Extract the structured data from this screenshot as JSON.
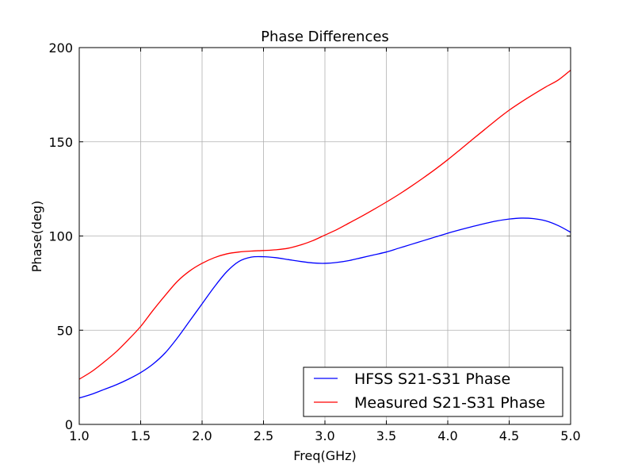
{
  "chart_data": {
    "type": "line",
    "title": "Phase Differences",
    "xlabel": "Freq(GHz)",
    "ylabel": "Phase(deg)",
    "xlim": [
      1.0,
      5.0
    ],
    "ylim": [
      0,
      200
    ],
    "x_ticks": [
      1.0,
      1.5,
      2.0,
      2.5,
      3.0,
      3.5,
      4.0,
      4.5,
      5.0
    ],
    "x_tick_labels": [
      "1.0",
      "1.5",
      "2.0",
      "2.5",
      "3.0",
      "3.5",
      "4.0",
      "4.5",
      "5.0"
    ],
    "y_ticks": [
      0,
      50,
      100,
      150,
      200
    ],
    "y_tick_labels": [
      "0",
      "50",
      "100",
      "150",
      "200"
    ],
    "grid": true,
    "legend_position": "lower-right",
    "series": [
      {
        "name": "HFSS S21-S31 Phase",
        "color": "#0000ff",
        "x": [
          1.0,
          1.1,
          1.2,
          1.3,
          1.4,
          1.5,
          1.6,
          1.7,
          1.8,
          1.9,
          2.0,
          2.1,
          2.2,
          2.3,
          2.4,
          2.5,
          2.6,
          2.7,
          2.8,
          2.9,
          3.0,
          3.1,
          3.2,
          3.3,
          3.4,
          3.5,
          3.6,
          3.7,
          3.8,
          3.9,
          4.0,
          4.1,
          4.2,
          4.3,
          4.4,
          4.5,
          4.6,
          4.7,
          4.8,
          4.9,
          5.0
        ],
        "y": [
          14,
          16,
          18.5,
          21,
          24,
          27.5,
          32,
          38,
          46,
          55,
          64,
          73,
          81,
          86.5,
          88.8,
          89,
          88.5,
          87.5,
          86.5,
          85.7,
          85.5,
          86,
          87,
          88.5,
          90,
          91.5,
          93.5,
          95.5,
          97.5,
          99.5,
          101.5,
          103.3,
          105,
          106.6,
          108,
          109,
          109.5,
          109.2,
          108,
          105.5,
          102
        ]
      },
      {
        "name": "Measured S21-S31 Phase",
        "color": "#ff0000",
        "x": [
          1.0,
          1.1,
          1.2,
          1.3,
          1.4,
          1.5,
          1.6,
          1.7,
          1.8,
          1.9,
          2.0,
          2.1,
          2.2,
          2.3,
          2.4,
          2.5,
          2.6,
          2.7,
          2.8,
          2.9,
          3.0,
          3.1,
          3.2,
          3.3,
          3.4,
          3.5,
          3.6,
          3.7,
          3.8,
          3.9,
          4.0,
          4.1,
          4.2,
          4.3,
          4.4,
          4.5,
          4.6,
          4.7,
          4.8,
          4.9,
          5.0
        ],
        "y": [
          24,
          28,
          33,
          38.5,
          45,
          52,
          60.5,
          68.5,
          76,
          81.5,
          85.5,
          88.5,
          90.5,
          91.5,
          92,
          92.3,
          92.7,
          93.5,
          95.2,
          97.5,
          100.5,
          103.5,
          107,
          110.5,
          114.2,
          118,
          122,
          126.3,
          130.8,
          135.5,
          140.5,
          145.8,
          151.2,
          156.5,
          161.8,
          166.8,
          171.2,
          175.3,
          179.2,
          182.8,
          188
        ]
      }
    ]
  }
}
